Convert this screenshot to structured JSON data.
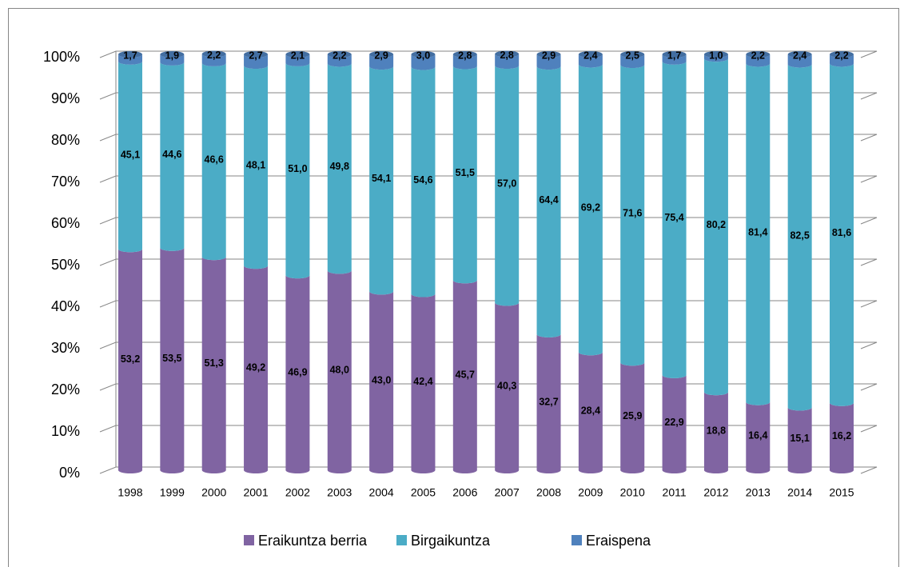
{
  "chart_data": {
    "type": "bar",
    "stacked": true,
    "categories": [
      "1998",
      "1999",
      "2000",
      "2001",
      "2002",
      "2003",
      "2004",
      "2005",
      "2006",
      "2007",
      "2008",
      "2009",
      "2010",
      "2011",
      "2012",
      "2013",
      "2014",
      "2015"
    ],
    "series": [
      {
        "name": "Eraikuntza berria",
        "color": "#8064a2",
        "values": [
          53.2,
          53.5,
          51.3,
          49.2,
          46.9,
          48.0,
          43.0,
          42.4,
          45.7,
          40.3,
          32.7,
          28.4,
          25.9,
          22.9,
          18.8,
          16.4,
          15.1,
          16.2
        ],
        "value_labels": [
          "53,2",
          "53,5",
          "51,3",
          "49,2",
          "46,9",
          "48,0",
          "43,0",
          "42,4",
          "45,7",
          "40,3",
          "32,7",
          "28,4",
          "25,9",
          "22,9",
          "18,8",
          "16,4",
          "15,1",
          "16,2"
        ]
      },
      {
        "name": "Birgaikuntza",
        "color": "#4bacc6",
        "values": [
          45.1,
          44.6,
          46.6,
          48.1,
          51.0,
          49.8,
          54.1,
          54.6,
          51.5,
          57.0,
          64.4,
          69.2,
          71.6,
          75.4,
          80.2,
          81.4,
          82.5,
          81.6
        ],
        "value_labels": [
          "45,1",
          "44,6",
          "46,6",
          "48,1",
          "51,0",
          "49,8",
          "54,1",
          "54,6",
          "51,5",
          "57,0",
          "64,4",
          "69,2",
          "71,6",
          "75,4",
          "80,2",
          "81,4",
          "82,5",
          "81,6"
        ]
      },
      {
        "name": "Eraispena",
        "color": "#4f81bd",
        "values": [
          1.7,
          1.9,
          2.2,
          2.7,
          2.1,
          2.2,
          2.9,
          3.0,
          2.8,
          2.8,
          2.9,
          2.4,
          2.5,
          1.7,
          1.0,
          2.2,
          2.4,
          2.2
        ],
        "value_labels": [
          "1,7",
          "1,9",
          "2,2",
          "2,7",
          "2,1",
          "2,2",
          "2,9",
          "3,0",
          "2,8",
          "2,8",
          "2,9",
          "2,4",
          "2,5",
          "1,7",
          "1,0",
          "2,2",
          "2,4",
          "2,2"
        ]
      }
    ],
    "ylim": [
      0,
      100
    ],
    "yticks": [
      {
        "value": 0,
        "label": "0%"
      },
      {
        "value": 10,
        "label": "10%"
      },
      {
        "value": 20,
        "label": "20%"
      },
      {
        "value": 30,
        "label": "30%"
      },
      {
        "value": 40,
        "label": "40%"
      },
      {
        "value": 50,
        "label": "50%"
      },
      {
        "value": 60,
        "label": "60%"
      },
      {
        "value": 70,
        "label": "70%"
      },
      {
        "value": 80,
        "label": "80%"
      },
      {
        "value": 90,
        "label": "90%"
      },
      {
        "value": 100,
        "label": "100%"
      }
    ],
    "grid": true,
    "legend": "bottom"
  }
}
